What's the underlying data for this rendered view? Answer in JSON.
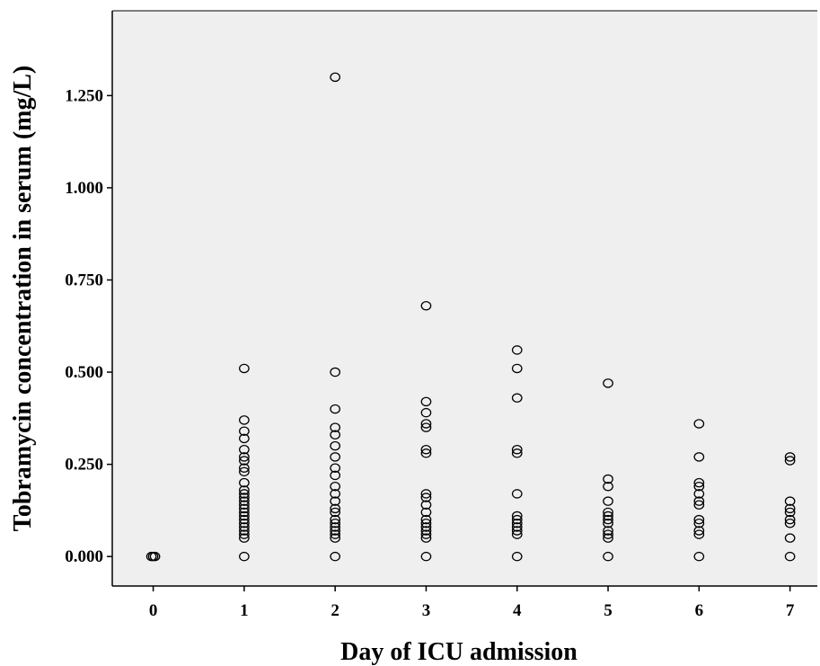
{
  "chart_data": {
    "type": "scatter",
    "title": "",
    "xlabel": "Day of ICU admission",
    "ylabel": "Tobramycin concentration in serum (mg/L)",
    "xlim": [
      -0.45,
      7.3
    ],
    "ylim": [
      -0.08,
      1.48
    ],
    "xticks": [
      0,
      1,
      2,
      3,
      4,
      5,
      6,
      7
    ],
    "xtick_labels": [
      "0",
      "1",
      "2",
      "3",
      "4",
      "5",
      "6",
      "7"
    ],
    "yticks": [
      0,
      0.25,
      0.5,
      0.75,
      1.0,
      1.25
    ],
    "ytick_labels": [
      "0.000",
      "0.250",
      "0.500",
      "0.750",
      "1.000",
      "1.250"
    ],
    "grid": false,
    "legend": false,
    "colors": {
      "plot_background": "#efefef",
      "marker": "#000000",
      "axis": "#000000"
    },
    "points": [
      {
        "x": 0,
        "y": 0.0
      },
      {
        "x": 1,
        "y": 0.51
      },
      {
        "x": 1,
        "y": 0.37
      },
      {
        "x": 1,
        "y": 0.34
      },
      {
        "x": 1,
        "y": 0.32
      },
      {
        "x": 1,
        "y": 0.29
      },
      {
        "x": 1,
        "y": 0.27
      },
      {
        "x": 1,
        "y": 0.26
      },
      {
        "x": 1,
        "y": 0.24
      },
      {
        "x": 1,
        "y": 0.23
      },
      {
        "x": 1,
        "y": 0.2
      },
      {
        "x": 1,
        "y": 0.18
      },
      {
        "x": 1,
        "y": 0.17
      },
      {
        "x": 1,
        "y": 0.16
      },
      {
        "x": 1,
        "y": 0.15
      },
      {
        "x": 1,
        "y": 0.14
      },
      {
        "x": 1,
        "y": 0.13
      },
      {
        "x": 1,
        "y": 0.12
      },
      {
        "x": 1,
        "y": 0.11
      },
      {
        "x": 1,
        "y": 0.1
      },
      {
        "x": 1,
        "y": 0.09
      },
      {
        "x": 1,
        "y": 0.08
      },
      {
        "x": 1,
        "y": 0.07
      },
      {
        "x": 1,
        "y": 0.06
      },
      {
        "x": 1,
        "y": 0.05
      },
      {
        "x": 1,
        "y": 0.0
      },
      {
        "x": 2,
        "y": 1.3
      },
      {
        "x": 2,
        "y": 0.5
      },
      {
        "x": 2,
        "y": 0.4
      },
      {
        "x": 2,
        "y": 0.35
      },
      {
        "x": 2,
        "y": 0.33
      },
      {
        "x": 2,
        "y": 0.3
      },
      {
        "x": 2,
        "y": 0.27
      },
      {
        "x": 2,
        "y": 0.24
      },
      {
        "x": 2,
        "y": 0.22
      },
      {
        "x": 2,
        "y": 0.19
      },
      {
        "x": 2,
        "y": 0.17
      },
      {
        "x": 2,
        "y": 0.15
      },
      {
        "x": 2,
        "y": 0.13
      },
      {
        "x": 2,
        "y": 0.12
      },
      {
        "x": 2,
        "y": 0.1
      },
      {
        "x": 2,
        "y": 0.09
      },
      {
        "x": 2,
        "y": 0.08
      },
      {
        "x": 2,
        "y": 0.07
      },
      {
        "x": 2,
        "y": 0.06
      },
      {
        "x": 2,
        "y": 0.05
      },
      {
        "x": 2,
        "y": 0.0
      },
      {
        "x": 3,
        "y": 0.68
      },
      {
        "x": 3,
        "y": 0.42
      },
      {
        "x": 3,
        "y": 0.39
      },
      {
        "x": 3,
        "y": 0.36
      },
      {
        "x": 3,
        "y": 0.35
      },
      {
        "x": 3,
        "y": 0.29
      },
      {
        "x": 3,
        "y": 0.28
      },
      {
        "x": 3,
        "y": 0.17
      },
      {
        "x": 3,
        "y": 0.16
      },
      {
        "x": 3,
        "y": 0.14
      },
      {
        "x": 3,
        "y": 0.12
      },
      {
        "x": 3,
        "y": 0.1
      },
      {
        "x": 3,
        "y": 0.09
      },
      {
        "x": 3,
        "y": 0.08
      },
      {
        "x": 3,
        "y": 0.07
      },
      {
        "x": 3,
        "y": 0.06
      },
      {
        "x": 3,
        "y": 0.05
      },
      {
        "x": 3,
        "y": 0.0
      },
      {
        "x": 4,
        "y": 0.56
      },
      {
        "x": 4,
        "y": 0.51
      },
      {
        "x": 4,
        "y": 0.43
      },
      {
        "x": 4,
        "y": 0.29
      },
      {
        "x": 4,
        "y": 0.28
      },
      {
        "x": 4,
        "y": 0.17
      },
      {
        "x": 4,
        "y": 0.11
      },
      {
        "x": 4,
        "y": 0.1
      },
      {
        "x": 4,
        "y": 0.09
      },
      {
        "x": 4,
        "y": 0.08
      },
      {
        "x": 4,
        "y": 0.07
      },
      {
        "x": 4,
        "y": 0.06
      },
      {
        "x": 4,
        "y": 0.0
      },
      {
        "x": 5,
        "y": 0.47
      },
      {
        "x": 5,
        "y": 0.21
      },
      {
        "x": 5,
        "y": 0.19
      },
      {
        "x": 5,
        "y": 0.15
      },
      {
        "x": 5,
        "y": 0.12
      },
      {
        "x": 5,
        "y": 0.11
      },
      {
        "x": 5,
        "y": 0.1
      },
      {
        "x": 5,
        "y": 0.09
      },
      {
        "x": 5,
        "y": 0.07
      },
      {
        "x": 5,
        "y": 0.06
      },
      {
        "x": 5,
        "y": 0.05
      },
      {
        "x": 5,
        "y": 0.0
      },
      {
        "x": 6,
        "y": 0.36
      },
      {
        "x": 6,
        "y": 0.27
      },
      {
        "x": 6,
        "y": 0.2
      },
      {
        "x": 6,
        "y": 0.19
      },
      {
        "x": 6,
        "y": 0.17
      },
      {
        "x": 6,
        "y": 0.15
      },
      {
        "x": 6,
        "y": 0.14
      },
      {
        "x": 6,
        "y": 0.1
      },
      {
        "x": 6,
        "y": 0.09
      },
      {
        "x": 6,
        "y": 0.07
      },
      {
        "x": 6,
        "y": 0.06
      },
      {
        "x": 6,
        "y": 0.0
      },
      {
        "x": 7,
        "y": 0.27
      },
      {
        "x": 7,
        "y": 0.26
      },
      {
        "x": 7,
        "y": 0.15
      },
      {
        "x": 7,
        "y": 0.13
      },
      {
        "x": 7,
        "y": 0.12
      },
      {
        "x": 7,
        "y": 0.1
      },
      {
        "x": 7,
        "y": 0.09
      },
      {
        "x": 7,
        "y": 0.05
      },
      {
        "x": 7,
        "y": 0.0
      }
    ]
  }
}
